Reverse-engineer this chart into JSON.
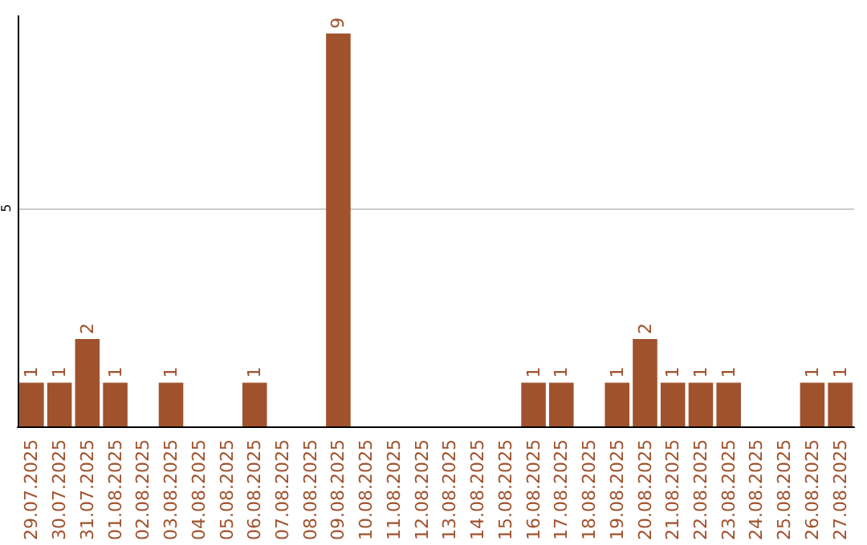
{
  "chart_data": {
    "type": "bar",
    "categories": [
      "29.07.2025",
      "30.07.2025",
      "31.07.2025",
      "01.08.2025",
      "02.08.2025",
      "03.08.2025",
      "04.08.2025",
      "05.08.2025",
      "06.08.2025",
      "07.08.2025",
      "08.08.2025",
      "09.08.2025",
      "10.08.2025",
      "11.08.2025",
      "12.08.2025",
      "13.08.2025",
      "14.08.2025",
      "15.08.2025",
      "16.08.2025",
      "17.08.2025",
      "18.08.2025",
      "19.08.2025",
      "20.08.2025",
      "21.08.2025",
      "22.08.2025",
      "23.08.2025",
      "24.08.2025",
      "25.08.2025",
      "26.08.2025",
      "27.08.2025"
    ],
    "values": [
      1,
      1,
      2,
      1,
      0,
      1,
      0,
      0,
      1,
      0,
      0,
      9,
      0,
      0,
      0,
      0,
      0,
      0,
      1,
      1,
      0,
      1,
      2,
      1,
      1,
      1,
      0,
      0,
      1,
      1
    ],
    "value_labels": [
      "1",
      "1",
      "2",
      "1",
      null,
      "1",
      null,
      null,
      "1",
      null,
      null,
      "9",
      null,
      null,
      null,
      null,
      null,
      null,
      "1",
      "1",
      null,
      "1",
      "2",
      "1",
      "1",
      "1",
      null,
      null,
      "1",
      "1"
    ],
    "color": "#a0522d",
    "ylim": [
      0,
      9.4
    ],
    "yticks": [
      5
    ],
    "grid": "y"
  }
}
